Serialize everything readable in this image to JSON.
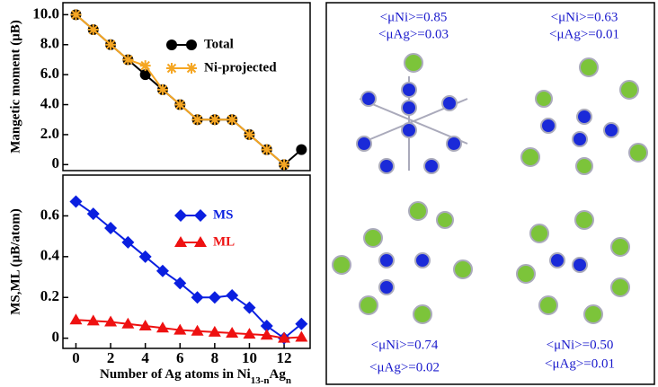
{
  "chart_data": [
    {
      "type": "line",
      "ylabel": "Mangetic moment (μB)",
      "x": [
        0,
        1,
        2,
        3,
        4,
        5,
        6,
        7,
        8,
        9,
        10,
        11,
        12,
        13
      ],
      "xlim": [
        -0.75,
        13.5
      ],
      "ylim": [
        -0.4,
        10.8
      ],
      "yticks": [
        0,
        {
          "value": 2,
          "label": "2.0"
        },
        {
          "value": 4,
          "label": "4.0"
        },
        {
          "value": 6,
          "label": "6.0"
        },
        {
          "value": 8,
          "label": "8.0"
        },
        {
          "value": 10,
          "label": "10.0"
        }
      ],
      "series": [
        {
          "name": "Total",
          "color": "#000000",
          "marker": "circle",
          "values": [
            10,
            9,
            8,
            7,
            6,
            5,
            4,
            3,
            3,
            3,
            2,
            1,
            0,
            1
          ]
        },
        {
          "name": "Ni-projected",
          "color": "#f5a623",
          "marker": "star",
          "values": [
            10,
            9,
            8,
            7,
            6.6,
            5,
            4,
            3,
            3,
            3,
            2,
            1,
            0,
            null
          ]
        }
      ]
    },
    {
      "type": "line",
      "ylabel": "MS,ML (μB/atom)",
      "xlabel_parts": [
        "Number of Ag atoms in Ni",
        "13-n",
        "Ag",
        "n"
      ],
      "x": [
        0,
        1,
        2,
        3,
        4,
        5,
        6,
        7,
        8,
        9,
        10,
        11,
        12,
        13
      ],
      "xlim": [
        -0.75,
        13.5
      ],
      "xticks": [
        0,
        2,
        4,
        6,
        8,
        10,
        12
      ],
      "ylim": [
        -0.05,
        0.8
      ],
      "yticks": [
        0,
        0.2,
        0.4,
        0.6
      ],
      "series": [
        {
          "name": "MS",
          "color": "#0a1fe0",
          "marker": "diamond",
          "values": [
            0.67,
            0.61,
            0.54,
            0.47,
            0.4,
            0.33,
            0.27,
            0.2,
            0.2,
            0.21,
            0.15,
            0.06,
            0.0,
            0.07
          ]
        },
        {
          "name": "ML",
          "color": "#ee1111",
          "marker": "triangle",
          "values": [
            0.09,
            0.085,
            0.08,
            0.07,
            0.06,
            0.05,
            0.04,
            0.035,
            0.03,
            0.025,
            0.02,
            0.015,
            0.0,
            0.005
          ]
        }
      ]
    }
  ],
  "panel": {
    "clusters": [
      {
        "ni": "<μNi>=0.85",
        "ag": "<μAg>=0.03"
      },
      {
        "ni": "<μNi>=0.63",
        "ag": "<μAg>=0.01"
      },
      {
        "ni": "<μNi>=0.74",
        "ag": "<μAg>=0.02"
      },
      {
        "ni": "<μNi>=0.50",
        "ag": "<μAg>=0.01"
      }
    ]
  }
}
